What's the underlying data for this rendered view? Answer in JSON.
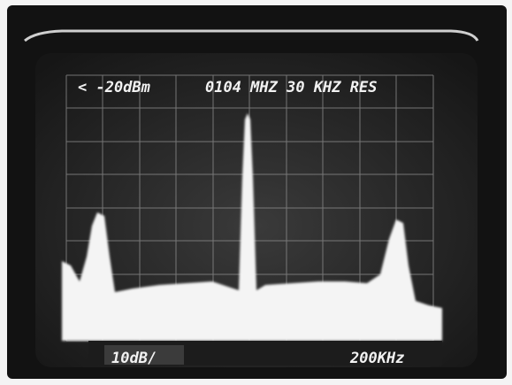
{
  "screen": {
    "top_left": "< -20dBm",
    "top_right": "0104 MHZ 30 KHZ RES",
    "bottom_left": "10dB/",
    "bottom_right": "200KHz"
  }
}
